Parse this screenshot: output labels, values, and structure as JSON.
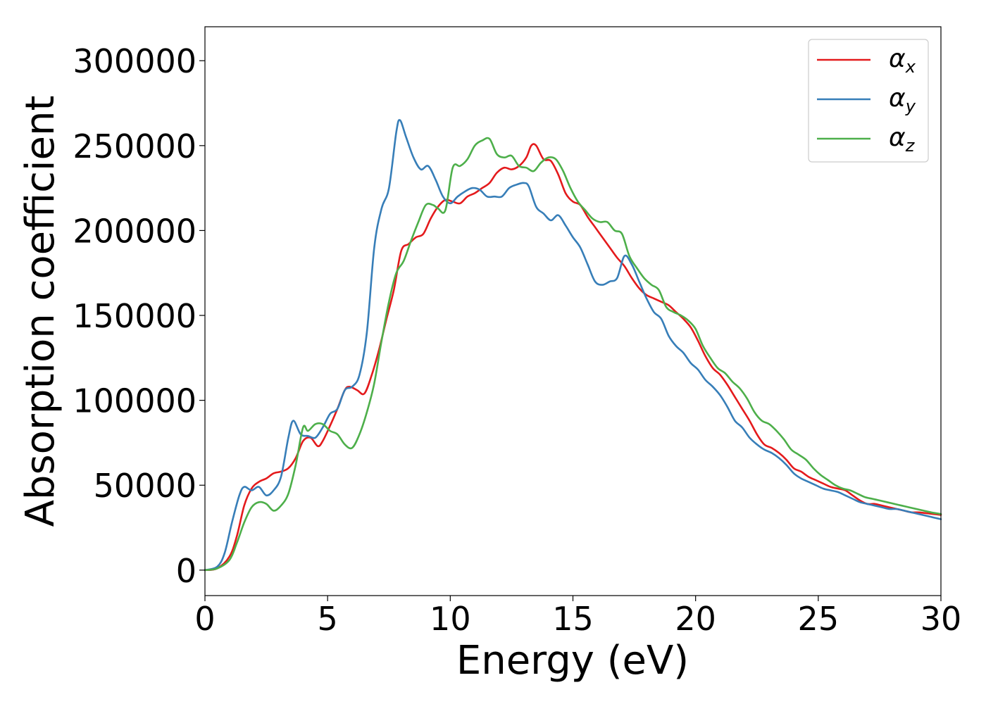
{
  "chart_data": {
    "type": "line",
    "title": "",
    "xlabel": "Energy (eV)",
    "ylabel": "Absorption coefficient",
    "xlim": [
      0,
      30
    ],
    "ylim": [
      -15000,
      320000
    ],
    "xticks": [
      0,
      5,
      10,
      15,
      20,
      25,
      30
    ],
    "yticks": [
      0,
      50000,
      100000,
      150000,
      200000,
      250000,
      300000
    ],
    "xtick_labels": [
      "0",
      "5",
      "10",
      "15",
      "20",
      "25",
      "30"
    ],
    "ytick_labels": [
      "0",
      "50000",
      "100000",
      "150000",
      "200000",
      "250000",
      "300000"
    ],
    "grid": false,
    "legend_position": "top-right",
    "series": [
      {
        "name": "α_x",
        "legend_main": "α",
        "legend_sub": "x",
        "color": "#e41a1c",
        "x": [
          0,
          0.5,
          1.0,
          1.3,
          1.6,
          1.9,
          2.2,
          2.5,
          2.8,
          3.1,
          3.4,
          3.7,
          4.0,
          4.3,
          4.6,
          4.8,
          5.1,
          5.4,
          5.7,
          5.9,
          6.2,
          6.5,
          6.8,
          7.1,
          7.4,
          7.7,
          8.0,
          8.3,
          8.6,
          8.9,
          9.2,
          9.5,
          9.8,
          10.1,
          10.4,
          10.7,
          11.0,
          11.3,
          11.6,
          11.9,
          12.2,
          12.5,
          12.8,
          13.1,
          13.3,
          13.5,
          13.8,
          14.1,
          14.4,
          14.7,
          15.0,
          15.3,
          15.6,
          15.9,
          16.2,
          16.5,
          16.8,
          17.1,
          17.4,
          17.7,
          18.0,
          18.3,
          18.6,
          18.9,
          19.2,
          19.5,
          19.8,
          20.1,
          20.4,
          20.7,
          21.0,
          21.3,
          21.6,
          21.9,
          22.2,
          22.5,
          22.8,
          23.1,
          23.4,
          23.7,
          24.0,
          24.3,
          24.6,
          24.9,
          25.2,
          25.5,
          25.8,
          26.1,
          26.4,
          26.7,
          27.0,
          27.3,
          27.6,
          27.9,
          28.2,
          28.5,
          28.8,
          29.1,
          29.4,
          29.7,
          30.0
        ],
        "y": [
          0,
          1000,
          8000,
          20000,
          38000,
          48000,
          52000,
          54000,
          57000,
          58000,
          60000,
          66000,
          76000,
          78000,
          73000,
          76000,
          85000,
          95000,
          106000,
          108000,
          106000,
          104000,
          115000,
          130000,
          148000,
          165000,
          188000,
          192000,
          196000,
          198000,
          207000,
          214000,
          218000,
          217000,
          216000,
          220000,
          222000,
          225000,
          228000,
          234000,
          237000,
          236000,
          238000,
          243000,
          250000,
          250000,
          242000,
          241000,
          233000,
          222000,
          217000,
          215000,
          208000,
          202000,
          196000,
          190000,
          184000,
          179000,
          172000,
          166000,
          162000,
          160000,
          158000,
          156000,
          152000,
          148000,
          143000,
          135000,
          126000,
          119000,
          115000,
          109000,
          102000,
          95000,
          88000,
          80000,
          74000,
          72000,
          69000,
          65000,
          60000,
          58000,
          55000,
          53000,
          51000,
          49000,
          48000,
          47000,
          44000,
          41000,
          39000,
          39000,
          38000,
          37000,
          36000,
          35000,
          34000,
          34000,
          33500,
          33000,
          32500
        ]
      },
      {
        "name": "α_y",
        "legend_main": "α",
        "legend_sub": "y",
        "color": "#377eb8",
        "x": [
          0,
          0.5,
          0.8,
          1.1,
          1.4,
          1.6,
          1.9,
          2.2,
          2.5,
          2.8,
          3.1,
          3.4,
          3.6,
          3.9,
          4.2,
          4.5,
          4.8,
          5.1,
          5.4,
          5.7,
          6.0,
          6.3,
          6.6,
          6.9,
          7.2,
          7.5,
          7.8,
          7.95,
          8.2,
          8.5,
          8.8,
          9.1,
          9.4,
          9.7,
          10.0,
          10.3,
          10.6,
          10.9,
          11.2,
          11.5,
          11.8,
          12.1,
          12.4,
          12.7,
          13.0,
          13.2,
          13.5,
          13.8,
          14.1,
          14.4,
          14.7,
          15.0,
          15.3,
          15.6,
          15.9,
          16.2,
          16.5,
          16.8,
          17.1,
          17.4,
          17.7,
          18.0,
          18.3,
          18.6,
          18.9,
          19.2,
          19.5,
          19.8,
          20.1,
          20.4,
          20.7,
          21.0,
          21.3,
          21.6,
          21.9,
          22.2,
          22.5,
          22.8,
          23.1,
          23.4,
          23.7,
          24.0,
          24.3,
          24.6,
          24.9,
          25.2,
          25.5,
          25.8,
          26.1,
          26.4,
          26.7,
          27.0,
          27.3,
          27.6,
          27.9,
          28.2,
          28.5,
          28.8,
          29.1,
          29.4,
          29.7,
          30.0
        ],
        "y": [
          0,
          2000,
          10000,
          28000,
          44000,
          49000,
          47000,
          49000,
          44000,
          47000,
          55000,
          78000,
          88000,
          80000,
          79000,
          78000,
          84000,
          92000,
          95000,
          106000,
          108000,
          115000,
          140000,
          190000,
          213000,
          225000,
          258000,
          265000,
          255000,
          243000,
          236000,
          238000,
          230000,
          220000,
          216000,
          220000,
          223000,
          225000,
          224000,
          220000,
          220000,
          220000,
          225000,
          227000,
          228000,
          226000,
          214000,
          210000,
          206000,
          209000,
          203000,
          196000,
          190000,
          180000,
          170000,
          168000,
          170000,
          172000,
          185000,
          180000,
          170000,
          160000,
          152000,
          148000,
          138000,
          132000,
          128000,
          122000,
          118000,
          112000,
          108000,
          103000,
          96000,
          88000,
          84000,
          78000,
          74000,
          71000,
          69000,
          66000,
          62000,
          57000,
          54000,
          52000,
          50000,
          48000,
          47000,
          46000,
          44000,
          42000,
          40000,
          39000,
          38000,
          37000,
          36000,
          36000,
          35000,
          34000,
          33000,
          32000,
          31000,
          30000
        ]
      },
      {
        "name": "α_z",
        "legend_main": "α",
        "legend_sub": "z",
        "color": "#4daf4a",
        "x": [
          0,
          0.5,
          1.0,
          1.3,
          1.6,
          1.9,
          2.2,
          2.5,
          2.8,
          3.1,
          3.4,
          3.7,
          4.0,
          4.2,
          4.5,
          4.8,
          5.1,
          5.4,
          5.7,
          6.0,
          6.3,
          6.6,
          6.9,
          7.2,
          7.5,
          7.8,
          8.1,
          8.4,
          8.7,
          9.0,
          9.3,
          9.5,
          9.8,
          10.1,
          10.4,
          10.7,
          11.0,
          11.3,
          11.6,
          11.9,
          12.2,
          12.5,
          12.8,
          13.1,
          13.4,
          13.7,
          14.0,
          14.3,
          14.6,
          14.9,
          15.2,
          15.5,
          15.8,
          16.1,
          16.4,
          16.7,
          17.0,
          17.3,
          17.6,
          17.9,
          18.2,
          18.5,
          18.8,
          19.1,
          19.4,
          19.7,
          20.0,
          20.3,
          20.6,
          20.9,
          21.2,
          21.5,
          21.8,
          22.1,
          22.4,
          22.7,
          23.0,
          23.3,
          23.6,
          23.9,
          24.2,
          24.5,
          24.8,
          25.1,
          25.4,
          25.7,
          26.0,
          26.3,
          26.6,
          26.9,
          27.2,
          27.5,
          27.8,
          28.1,
          28.4,
          28.7,
          29.0,
          29.3,
          29.6,
          30.0
        ],
        "y": [
          0,
          1000,
          6000,
          16000,
          28000,
          37000,
          40000,
          39000,
          35000,
          38000,
          45000,
          62000,
          84000,
          82000,
          86000,
          86000,
          82000,
          80000,
          74000,
          72000,
          80000,
          93000,
          110000,
          135000,
          158000,
          175000,
          182000,
          194000,
          205000,
          215000,
          215000,
          213000,
          212000,
          237000,
          238000,
          242000,
          250000,
          253000,
          254000,
          245000,
          243000,
          244000,
          238000,
          237000,
          235000,
          240000,
          243000,
          242000,
          235000,
          225000,
          217000,
          212000,
          207000,
          205000,
          205000,
          200000,
          198000,
          185000,
          178000,
          172000,
          168000,
          165000,
          155000,
          152000,
          150000,
          147000,
          142000,
          132000,
          125000,
          119000,
          116000,
          111000,
          107000,
          101000,
          93000,
          88000,
          86000,
          82000,
          77000,
          71000,
          68000,
          65000,
          60000,
          56000,
          53000,
          50000,
          48000,
          47000,
          45000,
          43000,
          42000,
          41000,
          40000,
          39000,
          38000,
          37000,
          36000,
          35000,
          34000,
          33000
        ]
      }
    ]
  }
}
